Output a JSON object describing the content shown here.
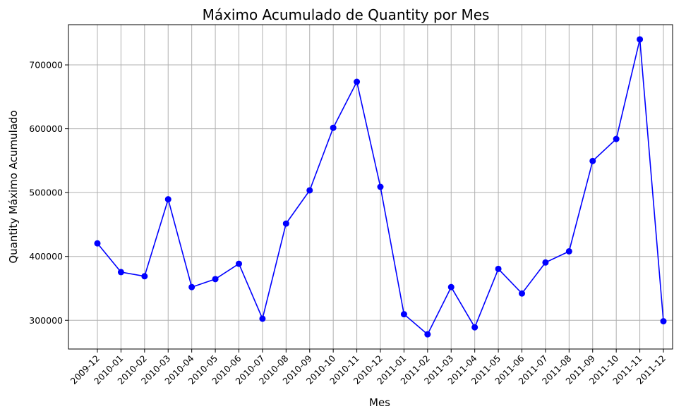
{
  "chart_data": {
    "type": "line",
    "title": "Máximo Acumulado de Quantity por Mes",
    "xlabel": "Mes",
    "ylabel": "Quantity Máximo Acumulado",
    "categories": [
      "2009-12",
      "2010-01",
      "2010-02",
      "2010-03",
      "2010-04",
      "2010-05",
      "2010-06",
      "2010-07",
      "2010-08",
      "2010-09",
      "2010-10",
      "2010-11",
      "2010-12",
      "2011-01",
      "2011-02",
      "2011-03",
      "2011-04",
      "2011-05",
      "2011-06",
      "2011-07",
      "2011-08",
      "2011-09",
      "2011-10",
      "2011-11",
      "2011-12"
    ],
    "series": [
      {
        "values": [
          420500,
          375500,
          369000,
          489500,
          352000,
          364500,
          388500,
          302500,
          451500,
          503500,
          601500,
          673500,
          509000,
          309500,
          278000,
          352000,
          289000,
          380500,
          342000,
          390500,
          408000,
          549500,
          584000,
          740000,
          298500
        ],
        "color": "#0000ff",
        "marker": "circle"
      }
    ],
    "yticks": [
      300000,
      400000,
      500000,
      600000,
      700000
    ],
    "ytick_labels": [
      "300000",
      "400000",
      "500000",
      "600000",
      "700000"
    ],
    "ylim": [
      255000,
      763000
    ],
    "grid": true,
    "legend": false
  }
}
